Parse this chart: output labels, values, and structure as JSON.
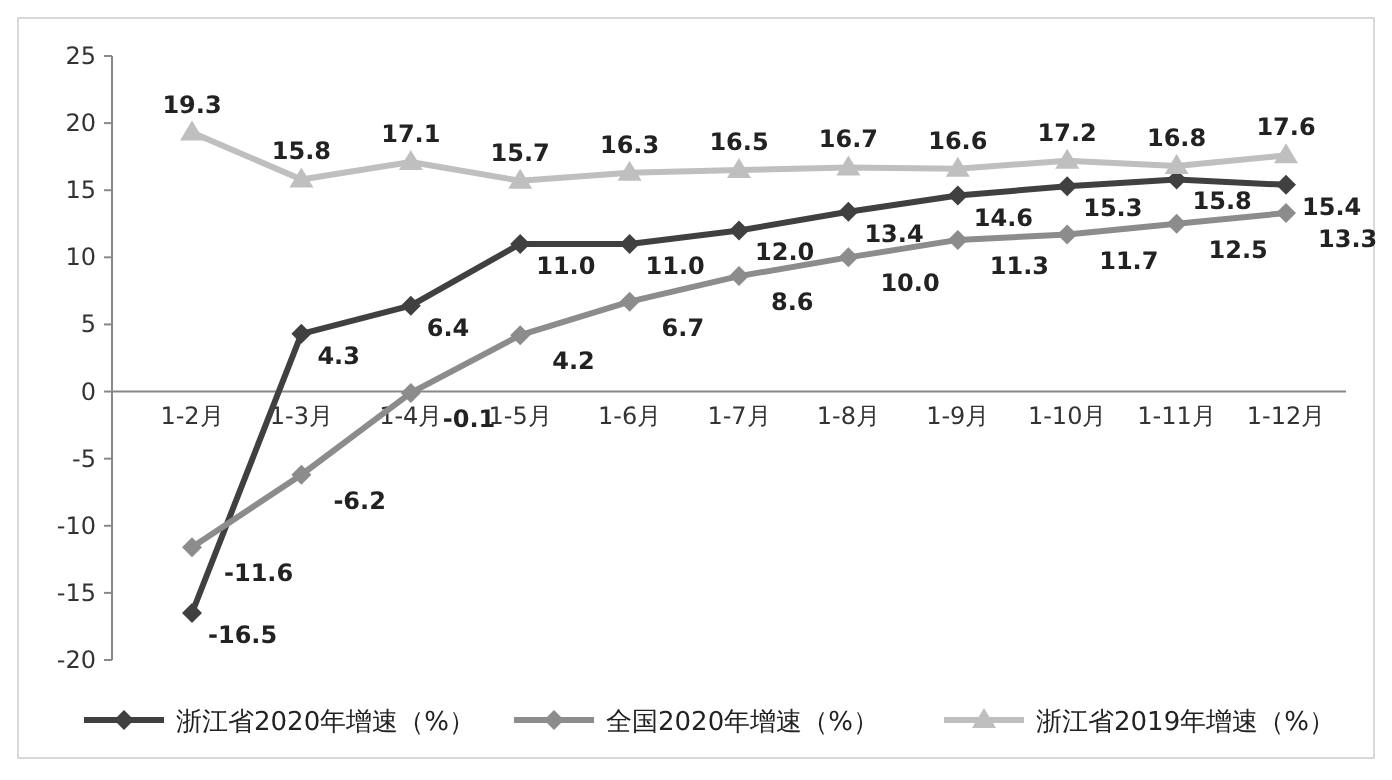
{
  "chart_data": {
    "type": "line",
    "categories": [
      "1-2月",
      "1-3月",
      "1-4月",
      "1-5月",
      "1-6月",
      "1-7月",
      "1-8月",
      "1-9月",
      "1-10月",
      "1-11月",
      "1-12月"
    ],
    "series": [
      {
        "name": "浙江省2020年增速（%）",
        "color": "#404040",
        "marker": "diamond",
        "values": [
          -16.5,
          4.3,
          6.4,
          11.0,
          11.0,
          12.0,
          13.4,
          14.6,
          15.3,
          15.8,
          15.4
        ],
        "value_labels": [
          "-16.5",
          "4.3",
          "6.4",
          "11.0",
          "11.0",
          "12.0",
          "13.4",
          "14.6",
          "15.3",
          "15.8",
          "15.4"
        ]
      },
      {
        "name": "全国2020年增速（%）",
        "color": "#8c8c8c",
        "marker": "diamond",
        "values": [
          -11.6,
          -6.2,
          -0.1,
          4.2,
          6.7,
          8.6,
          10.0,
          11.3,
          11.7,
          12.5,
          13.3
        ],
        "value_labels": [
          "-11.6",
          "-6.2",
          "-0.1",
          "4.2",
          "6.7",
          "8.6",
          "10.0",
          "11.3",
          "11.7",
          "12.5",
          "13.3"
        ]
      },
      {
        "name": "浙江省2019年增速（%）",
        "color": "#bfbfbf",
        "marker": "triangle",
        "values": [
          19.3,
          15.8,
          17.1,
          15.7,
          16.3,
          16.5,
          16.7,
          16.6,
          17.2,
          16.8,
          17.6
        ],
        "value_labels": [
          "19.3",
          "15.8",
          "17.1",
          "15.7",
          "16.3",
          "16.5",
          "16.7",
          "16.6",
          "17.2",
          "16.8",
          "17.6"
        ]
      }
    ],
    "ylim": [
      -20,
      25
    ],
    "yticks": [
      -20,
      -15,
      -10,
      -5,
      0,
      5,
      10,
      15,
      20,
      25
    ],
    "grid": false,
    "legend": "bottom"
  }
}
